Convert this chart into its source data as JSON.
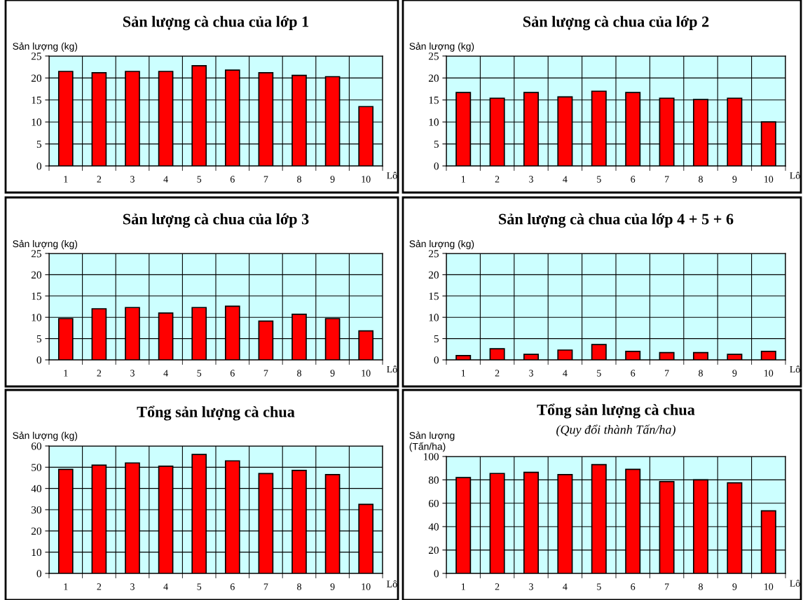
{
  "chart_data": [
    {
      "type": "bar",
      "title": "Sản lượng cà chua của lớp 1",
      "ylabel": "Sản lượng (kg)",
      "xlabel": "Lô",
      "categories": [
        "1",
        "2",
        "3",
        "4",
        "5",
        "6",
        "7",
        "8",
        "9",
        "10"
      ],
      "color": "#ff0000",
      "grid": true,
      "ylim": [
        0,
        25
      ],
      "yticks": [
        0,
        5,
        10,
        15,
        20,
        25
      ],
      "values": [
        21.5,
        21.2,
        21.5,
        21.5,
        22.8,
        21.8,
        21.2,
        20.6,
        20.3,
        13.5
      ]
    },
    {
      "type": "bar",
      "title": "Sản lượng cà chua của lớp 2",
      "ylabel": "Sản lượng (kg)",
      "xlabel": "Lô",
      "categories": [
        "1",
        "2",
        "3",
        "4",
        "5",
        "6",
        "7",
        "8",
        "9",
        "10"
      ],
      "color": "#ff0000",
      "grid": true,
      "ylim": [
        0,
        25
      ],
      "yticks": [
        0,
        5,
        10,
        15,
        20,
        25
      ],
      "values": [
        16.7,
        15.4,
        16.7,
        15.7,
        17.0,
        16.7,
        15.4,
        15.1,
        15.4,
        10.0
      ]
    },
    {
      "type": "bar",
      "title": "Sản lượng cà chua của lớp 3",
      "ylabel": "Sản lượng (kg)",
      "xlabel": "Lô",
      "categories": [
        "1",
        "2",
        "3",
        "4",
        "5",
        "6",
        "7",
        "8",
        "9",
        "10"
      ],
      "color": "#ff0000",
      "grid": true,
      "ylim": [
        0,
        25
      ],
      "yticks": [
        0,
        5,
        10,
        15,
        20,
        25
      ],
      "values": [
        9.7,
        12.0,
        12.3,
        11.0,
        12.3,
        12.6,
        9.1,
        10.7,
        9.7,
        6.8
      ]
    },
    {
      "type": "bar",
      "title": "Sản lượng cà chua của lớp 4 + 5 + 6",
      "ylabel": "Sản lượng (kg)",
      "xlabel": "Lô",
      "categories": [
        "1",
        "2",
        "3",
        "4",
        "5",
        "6",
        "7",
        "8",
        "9",
        "10"
      ],
      "color": "#ff0000",
      "grid": true,
      "ylim": [
        0,
        25
      ],
      "yticks": [
        0,
        5,
        10,
        15,
        20,
        25
      ],
      "values": [
        1.0,
        2.6,
        1.3,
        2.3,
        3.6,
        2.0,
        1.7,
        1.7,
        1.3,
        2.0
      ]
    },
    {
      "type": "bar",
      "title": "Tổng sản lượng cà chua",
      "ylabel": "Sản lượng (kg)",
      "xlabel": "Lô",
      "categories": [
        "1",
        "2",
        "3",
        "4",
        "5",
        "6",
        "7",
        "8",
        "9",
        "10"
      ],
      "color": "#ff0000",
      "grid": true,
      "ylim": [
        0,
        60
      ],
      "yticks": [
        0,
        10,
        20,
        30,
        40,
        50,
        60
      ],
      "values": [
        49,
        51,
        52,
        50.5,
        56,
        53,
        47,
        48.5,
        46.5,
        32.5
      ]
    },
    {
      "type": "bar",
      "title": "Tổng sản lượng cà chua",
      "subtitle": "(Quy đổi thành Tấn/ha)",
      "ylabel": "Sản lượng\n(Tấn/ha)",
      "xlabel": "Lô",
      "categories": [
        "1",
        "2",
        "3",
        "4",
        "5",
        "6",
        "7",
        "8",
        "9",
        "10"
      ],
      "color": "#ff0000",
      "grid": true,
      "ylim": [
        0,
        100
      ],
      "yticks": [
        0,
        20,
        40,
        60,
        80,
        100
      ],
      "values": [
        82,
        85.5,
        86.5,
        84.5,
        93,
        89,
        78.5,
        80,
        77.5,
        53.5
      ]
    }
  ]
}
